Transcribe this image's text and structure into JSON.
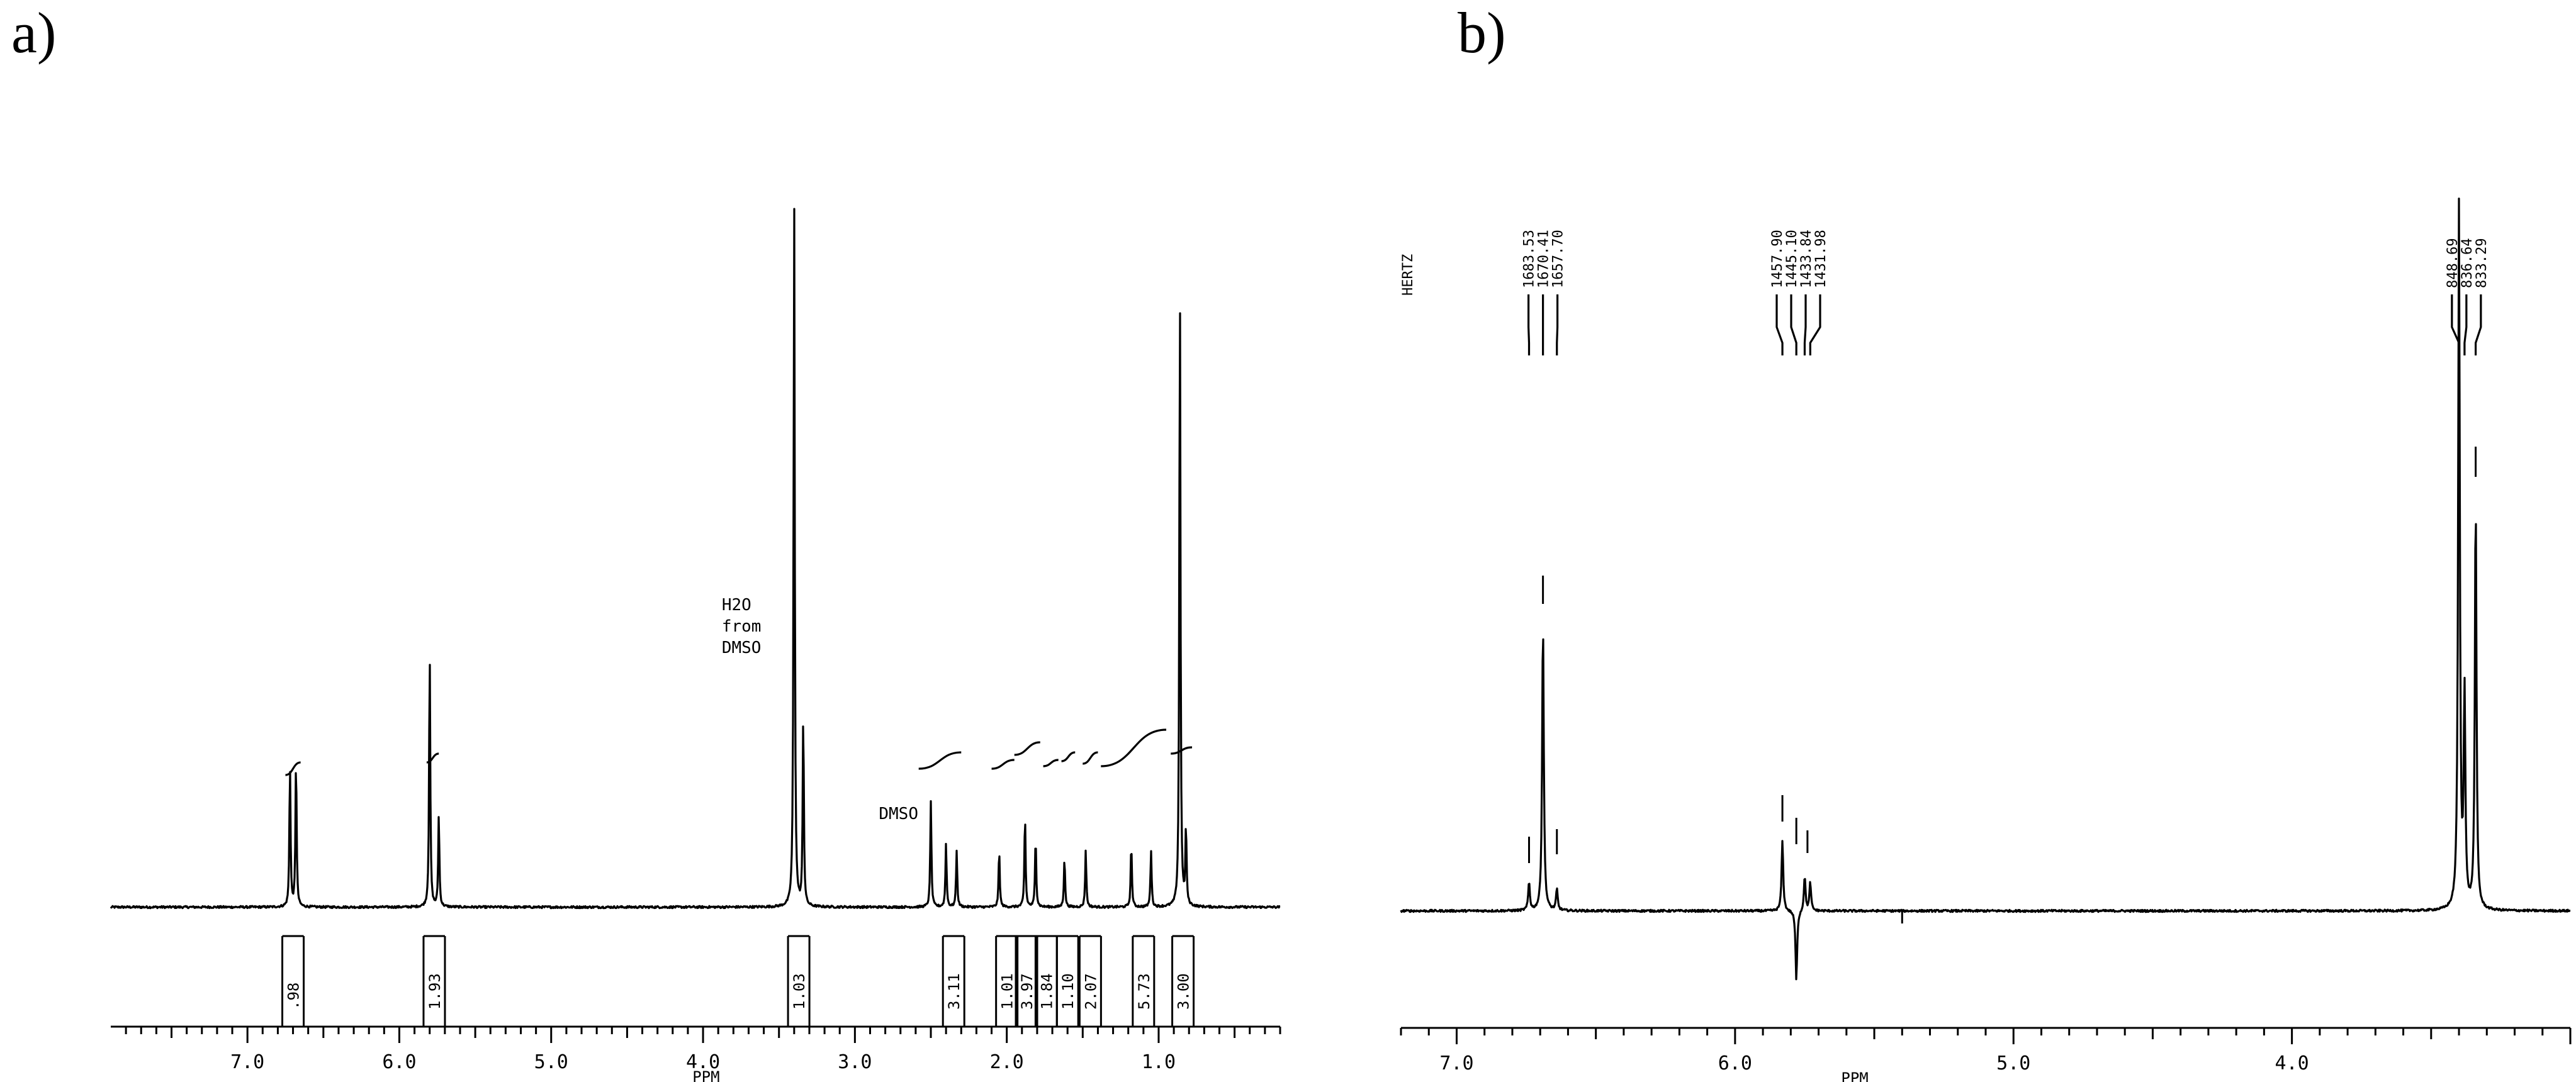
{
  "panels": {
    "a": "a)",
    "b": "b)"
  },
  "chart_data": [
    {
      "type": "line",
      "panel": "a)",
      "xlabel": "PPM",
      "x_reversed": true,
      "xlim": [
        7.9,
        0.2
      ],
      "x_ticks": [
        {
          "value": 7.0,
          "label": "7.0"
        },
        {
          "value": 6.0,
          "label": "6.0"
        },
        {
          "value": 5.0,
          "label": "5.0"
        },
        {
          "value": 4.0,
          "label": "4.0"
        },
        {
          "value": 3.0,
          "label": "3.0"
        },
        {
          "value": 2.0,
          "label": "2.0"
        },
        {
          "value": 1.0,
          "label": "1.0"
        }
      ],
      "peaks": [
        {
          "ppm": 6.72,
          "height": 0.2
        },
        {
          "ppm": 6.68,
          "height": 0.21
        },
        {
          "ppm": 5.8,
          "height": 0.36
        },
        {
          "ppm": 5.74,
          "height": 0.13
        },
        {
          "ppm": 3.4,
          "height": 1.0
        },
        {
          "ppm": 3.34,
          "height": 0.27
        },
        {
          "ppm": 2.5,
          "height": 0.15
        },
        {
          "ppm": 2.4,
          "height": 0.09
        },
        {
          "ppm": 2.33,
          "height": 0.08
        },
        {
          "ppm": 2.05,
          "height": 0.08
        },
        {
          "ppm": 1.88,
          "height": 0.13
        },
        {
          "ppm": 1.81,
          "height": 0.1
        },
        {
          "ppm": 1.62,
          "height": 0.07
        },
        {
          "ppm": 1.48,
          "height": 0.08
        },
        {
          "ppm": 1.18,
          "height": 0.09
        },
        {
          "ppm": 1.05,
          "height": 0.08
        },
        {
          "ppm": 0.86,
          "height": 0.88
        },
        {
          "ppm": 0.82,
          "height": 0.11
        }
      ],
      "annotations": [
        {
          "ppm": 3.4,
          "lines": [
            "H2O",
            "from",
            "DMSO"
          ]
        },
        {
          "ppm": 2.5,
          "lines": [
            "DMSO"
          ]
        }
      ],
      "integrals": [
        {
          "ppm": 6.7,
          "value": ".98"
        },
        {
          "ppm": 5.77,
          "value": "1.93"
        },
        {
          "ppm": 3.37,
          "value": "1.03"
        },
        {
          "ppm": 2.35,
          "value": "3.11"
        },
        {
          "ppm": 2.0,
          "value": "1.01"
        },
        {
          "ppm": 1.87,
          "value": "3.97"
        },
        {
          "ppm": 1.74,
          "value": "1.84"
        },
        {
          "ppm": 1.6,
          "value": "1.10"
        },
        {
          "ppm": 1.45,
          "value": "2.07"
        },
        {
          "ppm": 1.1,
          "value": "5.73"
        },
        {
          "ppm": 0.84,
          "value": "3.00"
        }
      ]
    },
    {
      "type": "line",
      "panel": "b)",
      "xlabel": "PPM",
      "x_reversed": true,
      "xlim": [
        7.2,
        3.0
      ],
      "x_ticks": [
        {
          "value": 7.0,
          "label": "7.0"
        },
        {
          "value": 6.0,
          "label": "6.0"
        },
        {
          "value": 5.0,
          "label": "5.0"
        },
        {
          "value": 4.0,
          "label": "4.0"
        }
      ],
      "peak_list_header": "HERTZ",
      "peak_list": [
        {
          "hz": "1683.53",
          "ppm": 6.74
        },
        {
          "hz": "1670.41",
          "ppm": 6.69
        },
        {
          "hz": "1657.70",
          "ppm": 6.64
        },
        {
          "hz": "1457.90",
          "ppm": 5.83
        },
        {
          "hz": "1445.10",
          "ppm": 5.78
        },
        {
          "hz": "1433.84",
          "ppm": 5.75
        },
        {
          "hz": "1431.98",
          "ppm": 5.73
        },
        {
          "hz": "848.69",
          "ppm": 3.4
        },
        {
          "hz": "836.64",
          "ppm": 3.38
        },
        {
          "hz": "833.29",
          "ppm": 3.34
        }
      ],
      "peaks": [
        {
          "ppm": 6.74,
          "height": 0.04
        },
        {
          "ppm": 6.69,
          "height": 0.41
        },
        {
          "ppm": 6.64,
          "height": 0.03
        },
        {
          "ppm": 5.83,
          "height": 0.1
        },
        {
          "ppm": 5.78,
          "height": -0.1
        },
        {
          "ppm": 5.75,
          "height": 0.05
        },
        {
          "ppm": 5.73,
          "height": 0.04
        },
        {
          "ppm": 3.4,
          "height": 1.0
        },
        {
          "ppm": 3.38,
          "height": 0.3
        },
        {
          "ppm": 3.34,
          "height": 0.58
        }
      ]
    }
  ]
}
